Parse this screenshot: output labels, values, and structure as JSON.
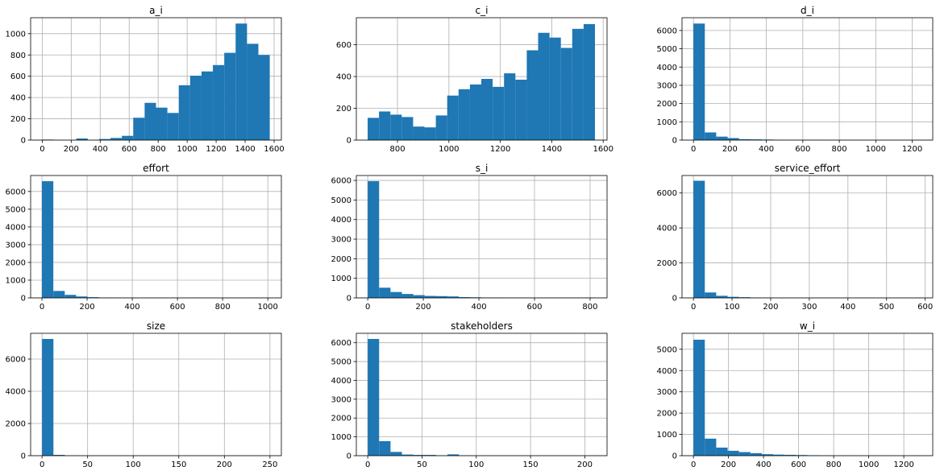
{
  "chart_data": [
    {
      "type": "histogram",
      "title": "a_i",
      "color": "#1f77b4",
      "grid": true,
      "bins": [
        0,
        78.5,
        157,
        235.5,
        314,
        392.5,
        471,
        549.5,
        628,
        706.5,
        785,
        863.5,
        942,
        1020.5,
        1099,
        1177.5,
        1256,
        1334.5,
        1413,
        1491.5,
        1570
      ],
      "values": [
        5,
        0,
        0,
        15,
        0,
        10,
        20,
        40,
        210,
        350,
        305,
        255,
        515,
        605,
        645,
        705,
        820,
        1095,
        905,
        800
      ],
      "xlim": [
        -80,
        1650
      ],
      "xticks": [
        0,
        200,
        400,
        600,
        800,
        1000,
        1200,
        1400,
        1600
      ],
      "ylim": [
        0,
        1150
      ],
      "yticks": [
        0,
        200,
        400,
        600,
        800,
        1000
      ]
    },
    {
      "type": "histogram",
      "title": "c_i",
      "color": "#1f77b4",
      "grid": true,
      "bins": [
        684,
        728.2,
        772.4,
        816.6,
        860.8,
        905,
        949.2,
        993.4,
        1037.6,
        1081.8,
        1126,
        1170.2,
        1214.4,
        1258.6,
        1302.8,
        1347,
        1391.2,
        1435.4,
        1479.6,
        1523.8,
        1568
      ],
      "values": [
        140,
        180,
        160,
        145,
        85,
        80,
        155,
        280,
        320,
        350,
        385,
        335,
        420,
        380,
        565,
        675,
        645,
        580,
        700,
        730
      ],
      "xlim": [
        640,
        1615
      ],
      "xticks": [
        800,
        1000,
        1200,
        1400,
        1600
      ],
      "ylim": [
        0,
        770
      ],
      "yticks": [
        0,
        200,
        400,
        600
      ]
    },
    {
      "type": "histogram",
      "title": "d_i",
      "color": "#1f77b4",
      "grid": true,
      "bins": [
        0,
        62.5,
        125,
        187.5,
        250,
        312.5,
        375,
        437.5,
        500,
        562.5,
        625,
        687.5,
        750,
        812.5,
        875,
        937.5,
        1000,
        1062.5,
        1125,
        1187.5,
        1250
      ],
      "values": [
        6380,
        420,
        190,
        110,
        50,
        40,
        30,
        10,
        5,
        5,
        3,
        2,
        0,
        0,
        0,
        0,
        0,
        0,
        0,
        1
      ],
      "xlim": [
        -62.5,
        1312.5
      ],
      "xticks": [
        0,
        200,
        400,
        600,
        800,
        1000,
        1200
      ],
      "ylim": [
        0,
        6700
      ],
      "yticks": [
        0,
        1000,
        2000,
        3000,
        4000,
        5000,
        6000
      ]
    },
    {
      "type": "histogram",
      "title": "effort",
      "color": "#1f77b4",
      "grid": true,
      "bins": [
        0,
        50.5,
        101,
        151.5,
        202,
        252.5,
        303,
        353.5,
        404,
        454.5,
        505,
        555.5,
        606,
        656.5,
        707,
        757.5,
        808,
        858.5,
        909,
        959.5,
        1010
      ],
      "values": [
        6580,
        390,
        170,
        80,
        40,
        20,
        15,
        10,
        5,
        5,
        5,
        5,
        5,
        15,
        5,
        5,
        10,
        5,
        15,
        10
      ],
      "xlim": [
        -50,
        1060
      ],
      "xticks": [
        0,
        200,
        400,
        600,
        800,
        1000
      ],
      "ylim": [
        0,
        6900
      ],
      "yticks": [
        0,
        1000,
        2000,
        3000,
        4000,
        5000,
        6000
      ]
    },
    {
      "type": "histogram",
      "title": "s_i",
      "color": "#1f77b4",
      "grid": true,
      "bins": [
        0,
        41,
        82,
        123,
        164,
        205,
        246,
        287,
        328,
        369,
        410,
        451,
        492,
        533,
        574,
        615,
        656,
        697,
        738,
        779,
        820
      ],
      "values": [
        5960,
        520,
        300,
        200,
        140,
        100,
        90,
        75,
        40,
        30,
        20,
        20,
        15,
        10,
        10,
        10,
        10,
        10,
        5,
        20
      ],
      "xlim": [
        -41,
        861
      ],
      "xticks": [
        0,
        200,
        400,
        600,
        800
      ],
      "ylim": [
        0,
        6250
      ],
      "yticks": [
        0,
        1000,
        2000,
        3000,
        4000,
        5000,
        6000
      ]
    },
    {
      "type": "histogram",
      "title": "service_effort",
      "color": "#1f77b4",
      "grid": true,
      "bins": [
        0,
        29.5,
        59,
        88.5,
        118,
        147.5,
        177,
        206.5,
        236,
        265.5,
        295,
        324.5,
        354,
        383.5,
        413,
        442.5,
        472,
        501.5,
        531,
        560.5,
        590
      ],
      "values": [
        6700,
        310,
        120,
        60,
        40,
        20,
        15,
        10,
        5,
        5,
        5,
        5,
        5,
        5,
        5,
        5,
        5,
        5,
        5,
        10
      ],
      "xlim": [
        -29.5,
        619.5
      ],
      "xticks": [
        0,
        100,
        200,
        300,
        400,
        500,
        600
      ],
      "ylim": [
        0,
        7000
      ],
      "yticks": [
        0,
        2000,
        4000,
        6000
      ]
    },
    {
      "type": "histogram",
      "title": "size",
      "color": "#1f77b4",
      "grid": true,
      "bins": [
        0,
        12.5,
        25,
        37.5,
        50,
        62.5,
        75,
        87.5,
        100,
        112.5,
        125,
        137.5,
        150,
        162.5,
        175,
        187.5,
        200,
        212.5,
        225,
        237.5,
        250
      ],
      "values": [
        7250,
        50,
        5,
        0,
        0,
        0,
        0,
        0,
        0,
        0,
        0,
        0,
        0,
        0,
        0,
        0,
        0,
        0,
        0,
        1
      ],
      "xlim": [
        -12.5,
        262.5
      ],
      "xticks": [
        0,
        50,
        100,
        150,
        200,
        250
      ],
      "ylim": [
        0,
        7600
      ],
      "yticks": [
        0,
        2000,
        4000,
        6000
      ]
    },
    {
      "type": "histogram",
      "title": "stakeholders",
      "color": "#1f77b4",
      "grid": true,
      "bins": [
        0,
        10.5,
        21,
        31.5,
        42,
        52.5,
        63,
        73.5,
        84,
        94.5,
        105,
        115.5,
        126,
        136.5,
        147,
        157.5,
        168,
        178.5,
        189,
        199.5,
        210
      ],
      "values": [
        6200,
        770,
        200,
        60,
        40,
        40,
        10,
        70,
        10,
        0,
        0,
        0,
        0,
        0,
        0,
        0,
        0,
        0,
        0,
        5
      ],
      "xlim": [
        -10.5,
        220.5
      ],
      "xticks": [
        0,
        50,
        100,
        150,
        200
      ],
      "ylim": [
        0,
        6500
      ],
      "yticks": [
        0,
        1000,
        2000,
        3000,
        4000,
        5000,
        6000
      ]
    },
    {
      "type": "histogram",
      "title": "w_i",
      "color": "#1f77b4",
      "grid": true,
      "bins": [
        0,
        65,
        130,
        195,
        260,
        325,
        390,
        455,
        520,
        585,
        650,
        715,
        780,
        845,
        910,
        975,
        1040,
        1105,
        1170,
        1235,
        1300
      ],
      "values": [
        5450,
        800,
        380,
        230,
        170,
        120,
        70,
        50,
        40,
        30,
        20,
        10,
        5,
        5,
        0,
        0,
        0,
        0,
        0,
        5
      ],
      "xlim": [
        -65,
        1365
      ],
      "xticks": [
        0,
        200,
        400,
        600,
        800,
        1000,
        1200
      ],
      "ylim": [
        0,
        5750
      ],
      "yticks": [
        0,
        1000,
        2000,
        3000,
        4000,
        5000
      ]
    }
  ]
}
